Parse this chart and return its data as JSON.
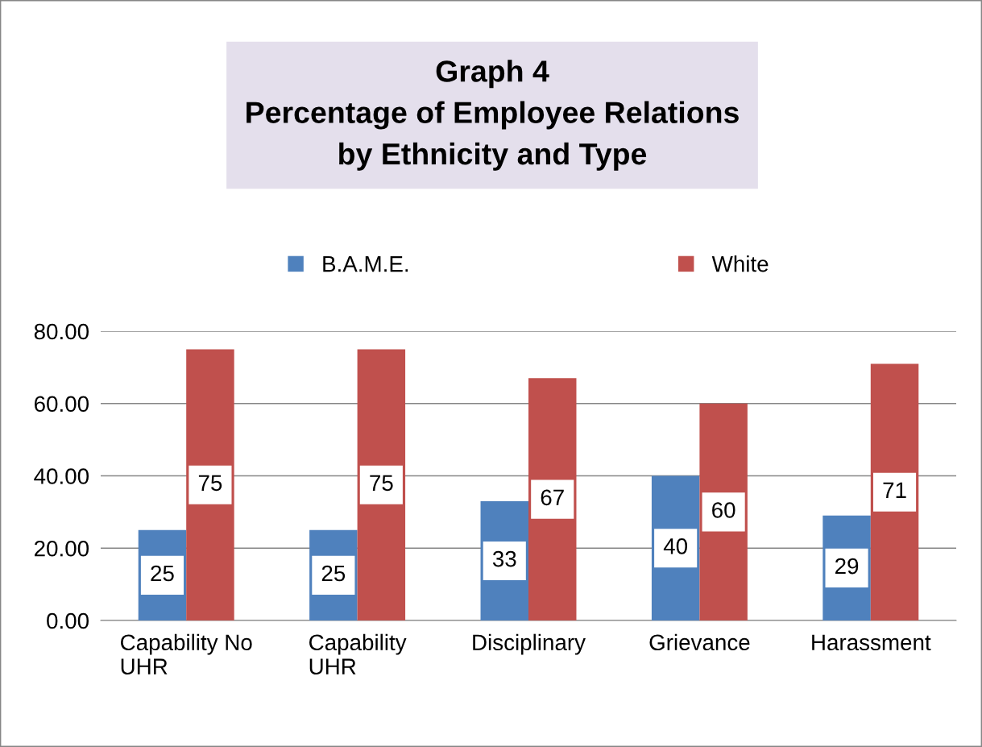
{
  "chart_data": {
    "type": "bar",
    "title": "Graph 4\nPercentage of Employee Relations\nby Ethnicity and Type",
    "categories": [
      "Capability No UHR",
      "Capability UHR",
      "Disciplinary",
      "Grievance",
      "Harassment"
    ],
    "series": [
      {
        "name": "B.A.M.E.",
        "color": "#4f81bd",
        "values": [
          25,
          25,
          33,
          40,
          29
        ]
      },
      {
        "name": "White",
        "color": "#c0504d",
        "values": [
          75,
          75,
          67,
          60,
          71
        ]
      }
    ],
    "ylim": [
      0,
      80
    ],
    "yticks": [
      {
        "value": 0,
        "label": "0.00"
      },
      {
        "value": 20,
        "label": "20.00"
      },
      {
        "value": 40,
        "label": "40.00"
      },
      {
        "value": 60,
        "label": "60.00"
      },
      {
        "value": 80,
        "label": "80.00"
      }
    ],
    "grid": "y",
    "legend": "top",
    "data_labels": true
  }
}
